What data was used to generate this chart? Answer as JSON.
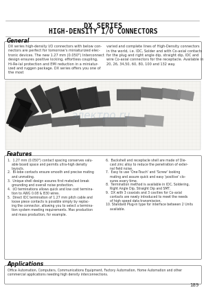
{
  "title_line1": "DX SERIES",
  "title_line2": "HIGH-DENSITY I/O CONNECTORS",
  "page_bg": "#ffffff",
  "section_general_title": "General",
  "general_text_left": "DX series high-density I/O connectors with below con-\nnectors are perfect for tomorrow's miniaturized elec-\ntronic devices. The new 1.27 mm (0.050\") Interconnect\ndesign ensures positive locking, effortless coupling,\nHi-Re-Ial protection and EMI reduction in a miniatur-\nized and ruggen package. DX series offers you one of\nthe most",
  "general_text_right": "varied and complete lines of High-Density connectors\nin the world, i.e. IDC, Solder and with Co-axial contacts\nfor the plug and right angle dip, straight dip, IDC and\nwire Co-axial connectors for the receptacle. Available in\n20, 26, 34,50, 60, 80, 100 and 132 way.",
  "features_title": "Features",
  "feat_left": [
    "1.  1.27 mm (0.050\") contact spacing conserves valu-\n    able board space and permits ultra-high density\n    layouts.",
    "2.  Bi-lobe contacts ensure smooth and precise mating\n    and unmating.",
    "3.  Unique shell design assures first mate/last break\n    grounding and overall noise protection.",
    "4.  I/O terminations allows quick and low cost termina-\n    tion to AWG 0.08 & B30 wires.",
    "5.  Direct IDC termination of 1.27 mm pitch cable and\n    loose piece contacts is possible simply by replac-\n    ing the connector, allowing you to select a termina-\n    tion system meeting requirements. Max production\n    and mass production, for example."
  ],
  "feat_right": [
    "6.  Backshell and receptacle shell are made of Die-\n    cast zinc alloy to reduce the penetration of exter-\n    nal field noise.",
    "7.  Easy to use 'One-Touch' and 'Screw' looking\n    mating and assure quick and easy 'positive' clo-\n    sures every time.",
    "8.  Termination method is available in IDC, Soldering,\n    Right Angle Dip, Straight Dip and SMT.",
    "9.  DX with 3 coaxials and 3 cavities for Co-axial\n    contacts are newly introduced to meet the needs\n    of high speed data transmission.",
    "10. Standard Plug-in type for interface between 2 Units\n    available."
  ],
  "applications_title": "Applications",
  "applications_text": "Office Automation, Computers, Communications Equipment, Factory Automation, Home Automation and other\ncommercial applications needing high density interconnections.",
  "page_number": "189",
  "title_color": "#111111",
  "text_color": "#333333",
  "heading_color": "#111111",
  "border_color": "#888888",
  "line_color": "#999999"
}
